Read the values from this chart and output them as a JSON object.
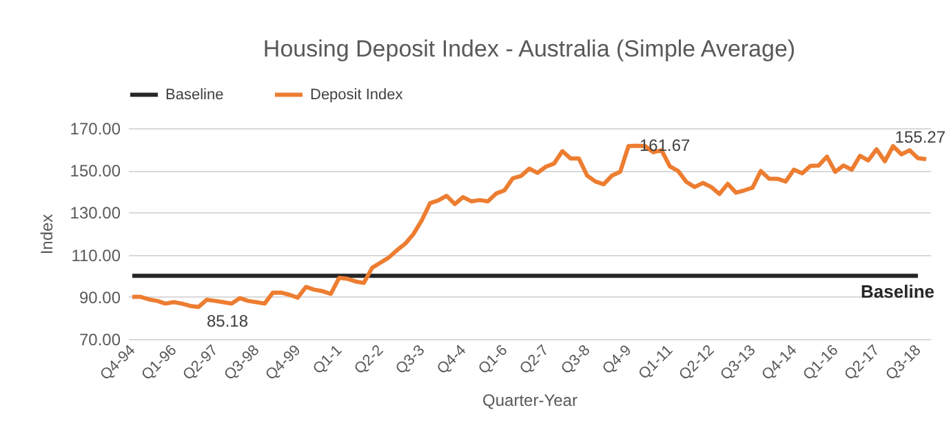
{
  "chart_data": {
    "type": "line",
    "title": "Housing Deposit Index - Australia (Simple Average)",
    "xlabel": "Quarter-Year",
    "ylabel": "Index",
    "categories": [
      "Q4-94",
      null,
      null,
      null,
      null,
      "Q1-96",
      null,
      null,
      null,
      null,
      "Q2-97",
      null,
      null,
      null,
      null,
      "Q3-98",
      null,
      null,
      null,
      null,
      "Q4-99",
      null,
      null,
      null,
      null,
      "Q1-1",
      null,
      null,
      null,
      null,
      "Q2-2",
      null,
      null,
      null,
      null,
      "Q3-3",
      null,
      null,
      null,
      null,
      "Q4-4",
      null,
      null,
      null,
      null,
      "Q1-6",
      null,
      null,
      null,
      null,
      "Q2-7",
      null,
      null,
      null,
      null,
      "Q3-8",
      null,
      null,
      null,
      null,
      "Q4-9",
      null,
      null,
      null,
      null,
      "Q1-11",
      null,
      null,
      null,
      null,
      "Q2-12",
      null,
      null,
      null,
      null,
      "Q3-13",
      null,
      null,
      null,
      null,
      "Q4-14",
      null,
      null,
      null,
      null,
      "Q1-16",
      null,
      null,
      null,
      null,
      "Q2-17",
      null,
      null,
      null,
      null,
      "Q3-18",
      null
    ],
    "series": [
      {
        "name": "Baseline",
        "color": "#262626",
        "values": [
          100,
          100,
          100,
          100,
          100,
          100,
          100,
          100,
          100,
          100,
          100,
          100,
          100,
          100,
          100,
          100,
          100,
          100,
          100,
          100,
          100,
          100,
          100,
          100,
          100,
          100,
          100,
          100,
          100,
          100,
          100,
          100,
          100,
          100,
          100,
          100,
          100,
          100,
          100,
          100,
          100,
          100,
          100,
          100,
          100,
          100,
          100,
          100,
          100,
          100,
          100,
          100,
          100,
          100,
          100,
          100,
          100,
          100,
          100,
          100,
          100,
          100,
          100,
          100,
          100,
          100,
          100,
          100,
          100,
          100,
          100,
          100,
          100,
          100,
          100,
          100,
          100,
          100,
          100,
          100,
          100,
          100,
          100,
          100,
          100,
          100,
          100,
          100,
          100,
          100,
          100,
          100,
          100,
          100,
          100,
          100,
          null
        ]
      },
      {
        "name": "Deposit Index",
        "color": "#ed7d31",
        "values": [
          90,
          90,
          88.8,
          88.1,
          86.8,
          87.5,
          86.8,
          85.7,
          85.18,
          88.6,
          88.1,
          87.5,
          86.8,
          89.4,
          88.1,
          87.5,
          86.8,
          92,
          92,
          91,
          89.6,
          94.7,
          93.4,
          92.7,
          91.4,
          99,
          98.6,
          97.3,
          96.6,
          103.8,
          106.2,
          108.6,
          112.1,
          115.2,
          119.8,
          126.3,
          134.4,
          135.7,
          137.9,
          134,
          137.3,
          135.3,
          135.9,
          135.3,
          139,
          140.5,
          146.2,
          147.3,
          150.8,
          148.8,
          151.7,
          153.2,
          159.1,
          155.6,
          155.6,
          147.5,
          144.7,
          143.4,
          147.5,
          149.3,
          161.5,
          161.67,
          161.5,
          158.6,
          159.5,
          151.9,
          149.7,
          144.5,
          142.1,
          144,
          142.1,
          138.8,
          143.6,
          139.4,
          140.5,
          141.8,
          149.7,
          146,
          146,
          144.7,
          150.3,
          148.6,
          152.1,
          152.3,
          156.5,
          149.3,
          152.3,
          150.3,
          156.9,
          154.7,
          160,
          154.3,
          161.5,
          157.6,
          159.5,
          155.8,
          155.27
        ],
        "value_labels": [
          null,
          null,
          null,
          null,
          null,
          null,
          null,
          null,
          "85.18",
          null,
          null,
          null,
          null,
          null,
          null,
          null,
          null,
          null,
          null,
          null,
          null,
          null,
          null,
          null,
          null,
          null,
          null,
          null,
          null,
          null,
          null,
          null,
          null,
          null,
          null,
          null,
          null,
          null,
          null,
          null,
          null,
          null,
          null,
          null,
          null,
          null,
          null,
          null,
          null,
          null,
          null,
          null,
          null,
          null,
          null,
          null,
          null,
          null,
          null,
          null,
          null,
          "161.67",
          null,
          null,
          null,
          null,
          null,
          null,
          null,
          null,
          null,
          null,
          null,
          null,
          null,
          null,
          null,
          null,
          null,
          null,
          null,
          null,
          null,
          null,
          null,
          null,
          null,
          null,
          null,
          null,
          null,
          null,
          null,
          null,
          null,
          null,
          "155.27"
        ]
      }
    ],
    "ylim": [
      70,
      170
    ],
    "yticks": [
      {
        "value": 70,
        "label": "70.00"
      },
      {
        "value": 90,
        "label": "90.00"
      },
      {
        "value": 110,
        "label": "110.00"
      },
      {
        "value": 130,
        "label": "130.00"
      },
      {
        "value": 150,
        "label": "150.00"
      },
      {
        "value": 170,
        "label": "170.00"
      }
    ],
    "grid": "y",
    "legend": "top",
    "marker": "none",
    "annotations": [
      {
        "text": "Baseline",
        "x": "Q3-18",
        "y": 100
      }
    ]
  }
}
